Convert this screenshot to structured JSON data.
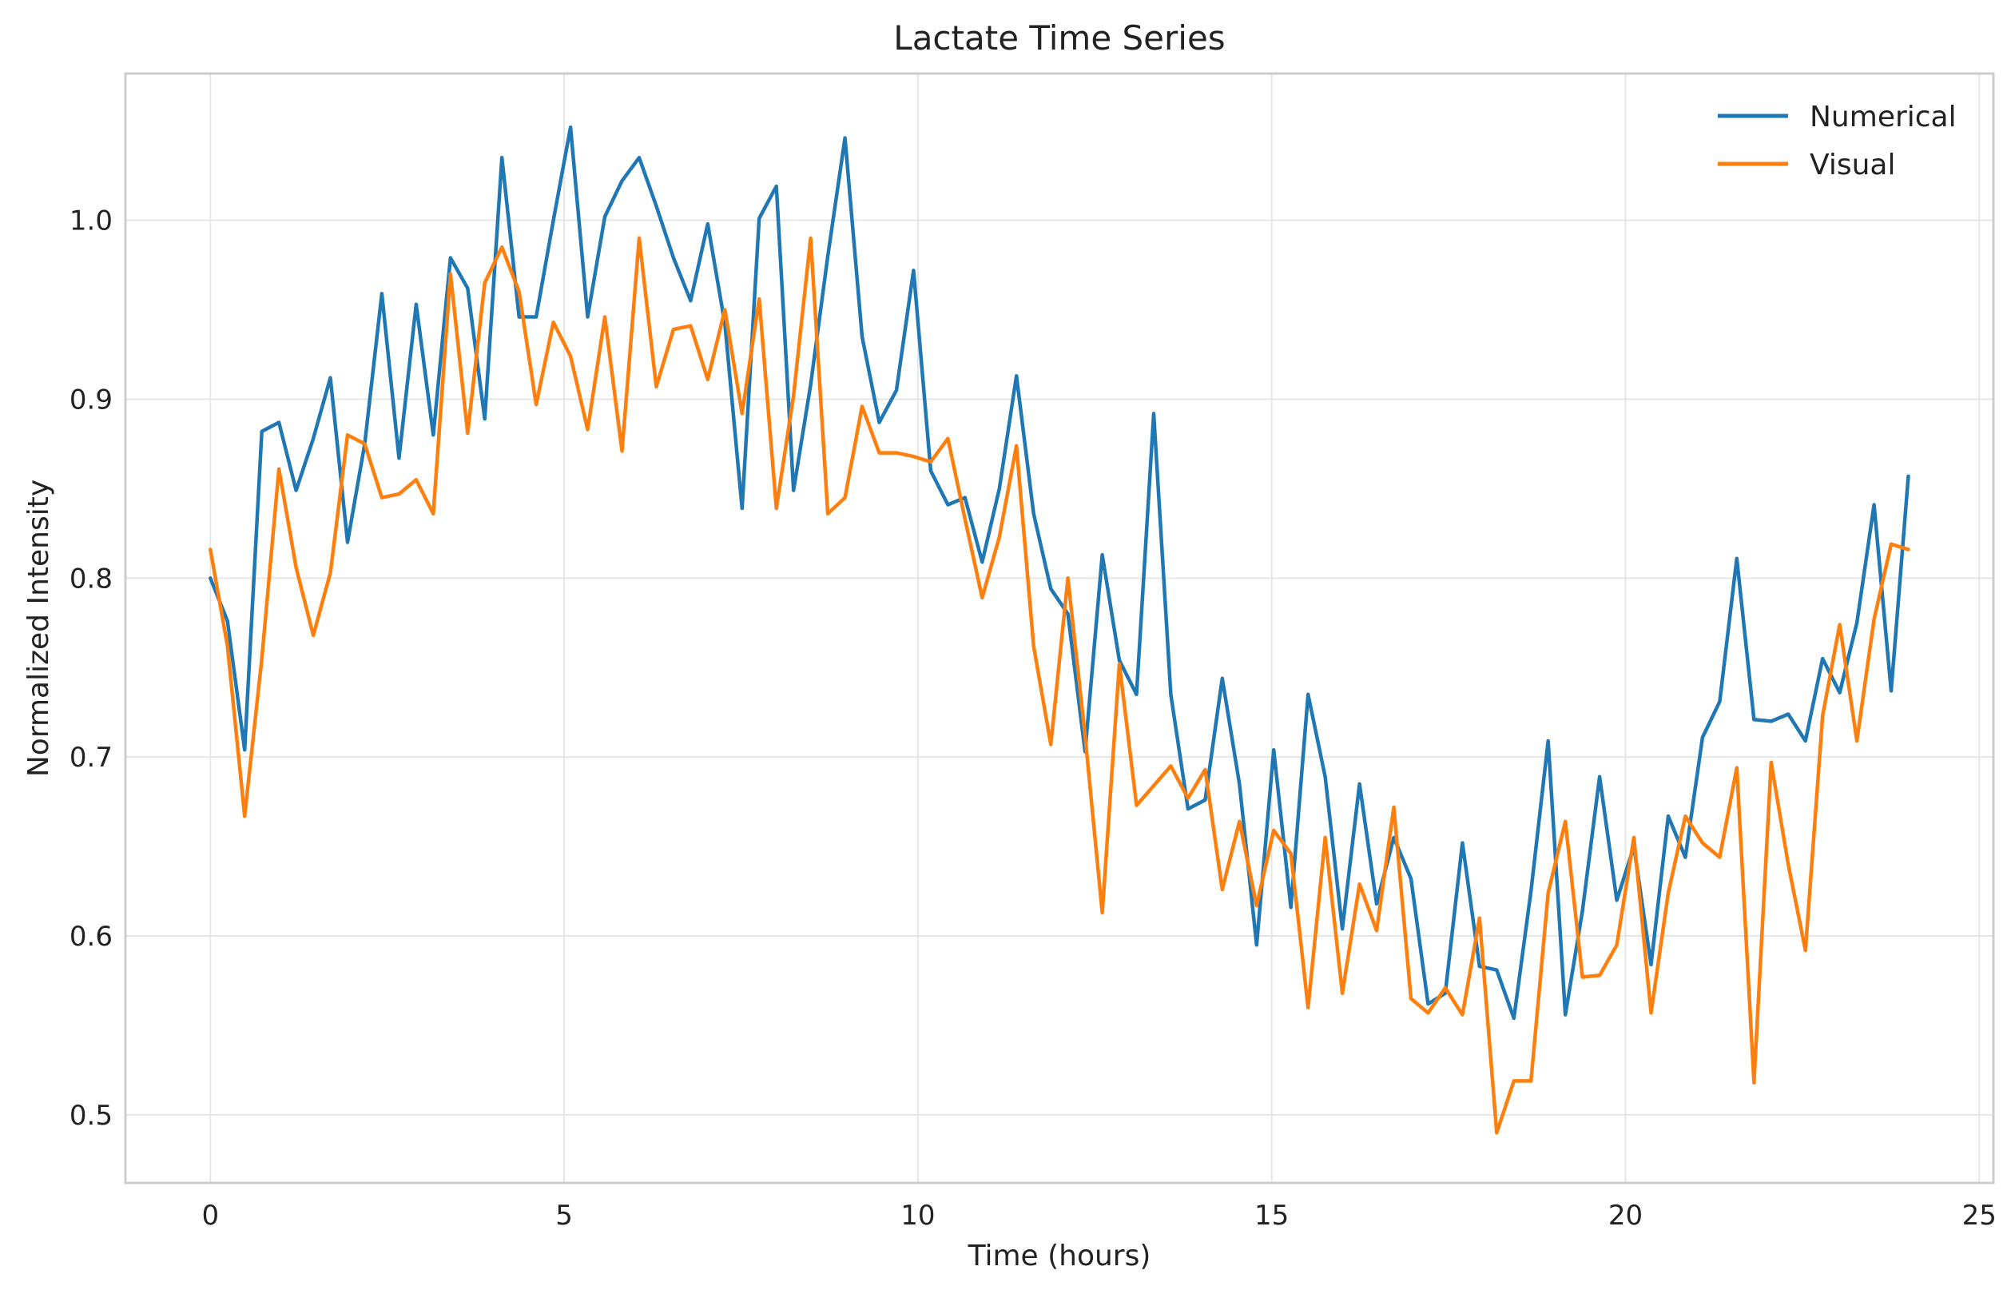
{
  "chart_data": {
    "type": "line",
    "title": "Lactate Time Series",
    "xlabel": "Time (hours)",
    "ylabel": "Normalized Intensity",
    "xlim": [
      -1.2,
      25.2
    ],
    "ylim": [
      0.462,
      1.082
    ],
    "xticks": [
      0,
      5,
      10,
      15,
      20,
      25
    ],
    "yticks": [
      0.5,
      0.6,
      0.7,
      0.8,
      0.9,
      1.0
    ],
    "xtick_labels": [
      "0",
      "5",
      "10",
      "15",
      "20",
      "25"
    ],
    "ytick_labels": [
      "0.5",
      "0.6",
      "0.7",
      "0.8",
      "0.9",
      "1.0"
    ],
    "grid": true,
    "legend_position": "top-right",
    "x_start": 0,
    "x_step": 0.2424,
    "series": [
      {
        "name": "Numerical",
        "color": "#1f77b4",
        "values": [
          0.8,
          0.776,
          0.704,
          0.882,
          0.887,
          0.849,
          0.878,
          0.912,
          0.82,
          0.875,
          0.959,
          0.867,
          0.953,
          0.88,
          0.979,
          0.962,
          0.889,
          1.035,
          0.946,
          0.946,
          1.0,
          1.052,
          0.946,
          1.002,
          1.022,
          1.035,
          1.008,
          0.979,
          0.955,
          0.998,
          0.942,
          0.839,
          1.001,
          1.019,
          0.849,
          0.908,
          0.98,
          1.046,
          0.935,
          0.887,
          0.905,
          0.972,
          0.86,
          0.841,
          0.845,
          0.809,
          0.85,
          0.913,
          0.836,
          0.794,
          0.78,
          0.703,
          0.813,
          0.754,
          0.735,
          0.892,
          0.735,
          0.671,
          0.676,
          0.744,
          0.685,
          0.595,
          0.704,
          0.616,
          0.735,
          0.689,
          0.604,
          0.685,
          0.618,
          0.655,
          0.632,
          0.562,
          0.568,
          0.652,
          0.583,
          0.581,
          0.554,
          0.625,
          0.709,
          0.556,
          0.614,
          0.689,
          0.62,
          0.65,
          0.584,
          0.667,
          0.644,
          0.711,
          0.731,
          0.811,
          0.721,
          0.72,
          0.724,
          0.709,
          0.755,
          0.736,
          0.775,
          0.841,
          0.737,
          0.857
        ]
      },
      {
        "name": "Visual",
        "color": "#ff7f0e",
        "values": [
          0.816,
          0.762,
          0.667,
          0.755,
          0.861,
          0.806,
          0.768,
          0.803,
          0.88,
          0.875,
          0.845,
          0.847,
          0.855,
          0.836,
          0.97,
          0.881,
          0.965,
          0.985,
          0.96,
          0.897,
          0.943,
          0.924,
          0.883,
          0.946,
          0.871,
          0.99,
          0.907,
          0.939,
          0.941,
          0.911,
          0.95,
          0.892,
          0.956,
          0.839,
          0.902,
          0.99,
          0.836,
          0.845,
          0.896,
          0.87,
          0.87,
          0.868,
          0.865,
          0.878,
          0.833,
          0.789,
          0.823,
          0.874,
          0.762,
          0.707,
          0.8,
          0.712,
          0.613,
          0.752,
          0.673,
          0.684,
          0.695,
          0.677,
          0.693,
          0.626,
          0.664,
          0.617,
          0.659,
          0.646,
          0.56,
          0.655,
          0.568,
          0.629,
          0.603,
          0.672,
          0.565,
          0.557,
          0.571,
          0.556,
          0.61,
          0.49,
          0.519,
          0.519,
          0.624,
          0.664,
          0.577,
          0.578,
          0.595,
          0.655,
          0.557,
          0.624,
          0.667,
          0.652,
          0.644,
          0.694,
          0.518,
          0.697,
          0.64,
          0.592,
          0.723,
          0.774,
          0.709,
          0.777,
          0.819,
          0.816
        ]
      }
    ]
  }
}
